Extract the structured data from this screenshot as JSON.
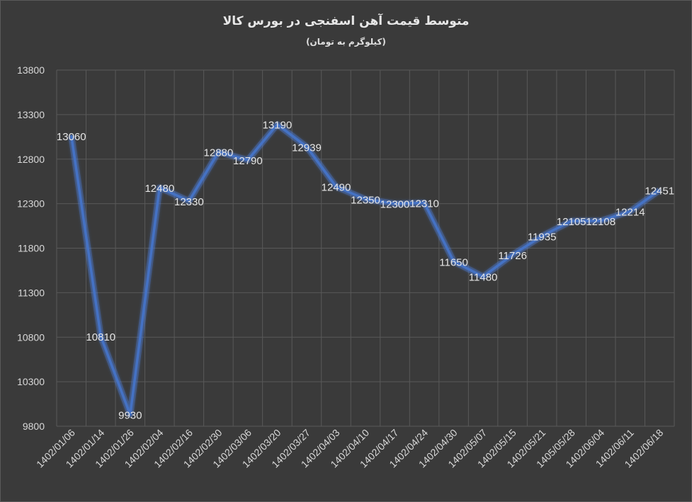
{
  "chart_data": {
    "type": "line",
    "title": "متوسط قیمت آهن اسفنجی در بورس کالا",
    "subtitle": "(کیلوگرم به تومان)",
    "categories": [
      "1402/01/06",
      "1402/01/14",
      "1402/01/26",
      "1402/02/04",
      "1402/02/16",
      "1402/02/30",
      "1402/03/06",
      "1402/03/20",
      "1402/03/27",
      "1402/04/03",
      "1402/04/10",
      "1402/04/17",
      "1402/04/24",
      "1402/04/30",
      "1402/05/07",
      "1402/05/15",
      "1402/05/21",
      "1405/05/28",
      "1402/06/04",
      "1402/06/11",
      "1402/06/18"
    ],
    "series": [
      {
        "values": [
          13060,
          10810,
          9930,
          12480,
          12330,
          12880,
          12790,
          13190,
          12939,
          12490,
          12350,
          12300,
          12310,
          11650,
          11480,
          11726,
          11935,
          12105,
          12108,
          12214,
          12451
        ]
      }
    ],
    "ylim": [
      9800,
      13800
    ],
    "yticks": [
      9800,
      10300,
      10800,
      11300,
      11800,
      12300,
      12800,
      13300,
      13800
    ],
    "grid": true,
    "line_color": "#4472c4",
    "glow_color": "#5b8fff",
    "background": "#3a3a3a",
    "grid_color": "#595959"
  }
}
